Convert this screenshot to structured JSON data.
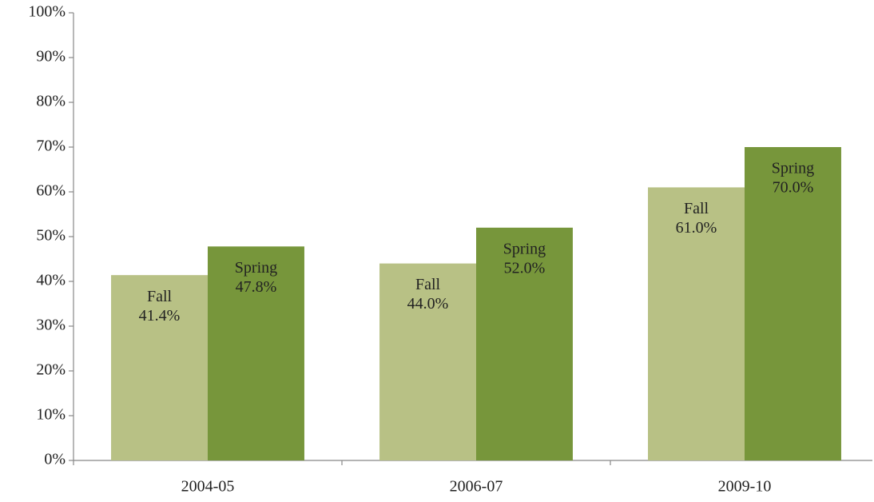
{
  "chart_data": {
    "type": "bar",
    "categories": [
      "2004-05",
      "2006-07",
      "2009-10"
    ],
    "series": [
      {
        "name": "Fall",
        "color": "#b8c185",
        "values": [
          41.4,
          44.0,
          61.0
        ],
        "value_labels": [
          "41.4%",
          "44.0%",
          "61.0%"
        ]
      },
      {
        "name": "Spring",
        "color": "#77963b",
        "values": [
          47.8,
          52.0,
          70.0
        ],
        "value_labels": [
          "47.8%",
          "52.0%",
          "70.0%"
        ]
      }
    ],
    "ylim": [
      0,
      100
    ],
    "yticks": [
      {
        "value": 0,
        "label": "0%"
      },
      {
        "value": 10,
        "label": "10%"
      },
      {
        "value": 20,
        "label": "20%"
      },
      {
        "value": 30,
        "label": "30%"
      },
      {
        "value": 40,
        "label": "40%"
      },
      {
        "value": 50,
        "label": "50%"
      },
      {
        "value": 60,
        "label": "60%"
      },
      {
        "value": 70,
        "label": "70%"
      },
      {
        "value": 80,
        "label": "80%"
      },
      {
        "value": 90,
        "label": "90%"
      },
      {
        "value": 100,
        "label": "100%"
      }
    ],
    "grid": false
  }
}
